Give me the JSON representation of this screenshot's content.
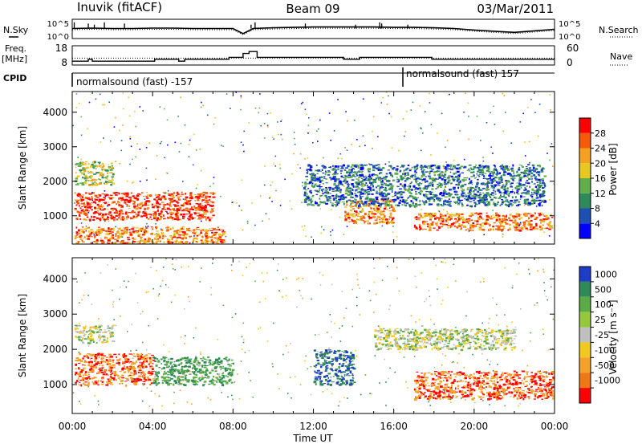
{
  "header": {
    "station": "Inuvik (fitACF)",
    "beam": "Beam 09",
    "date": "03/Mar/2011"
  },
  "noise_panel": {
    "left_label": "N.Sky",
    "right_label": "N.Search",
    "left_ticks": [
      "10^5",
      "10^0"
    ],
    "right_ticks": [
      "10^5",
      "10^0"
    ]
  },
  "freq_panel": {
    "left_label_1": "Freq.",
    "left_label_2": "[MHz]",
    "right_label": "Nave",
    "left_ticks": [
      "18",
      "8"
    ],
    "right_ticks": [
      "60",
      "0"
    ]
  },
  "cpid": {
    "label": "CPID",
    "segments": [
      {
        "text": "normalsound (fast) -157",
        "start_hour": 0
      },
      {
        "text": "normalsound (fast) 157",
        "start_hour": 16.6
      }
    ]
  },
  "x_axis": {
    "label": "Time UT",
    "ticks": [
      "00:00",
      "04:00",
      "08:00",
      "12:00",
      "16:00",
      "20:00",
      "00:00"
    ],
    "range_hours": [
      0,
      24
    ]
  },
  "y_axis": {
    "label": "Slant Range [km]",
    "ticks": [
      "1000",
      "2000",
      "3000",
      "4000"
    ],
    "range_km": [
      180,
      4600
    ]
  },
  "power_colorbar": {
    "label": "Power [dB]",
    "ticks": [
      "4",
      "8",
      "12",
      "16",
      "20",
      "24",
      "28"
    ],
    "colors": [
      "#0000ff",
      "#1e50b4",
      "#2f8a5a",
      "#5fae4a",
      "#e6c81e",
      "#f5a01e",
      "#f55a0a",
      "#ff0000"
    ]
  },
  "velocity_colorbar": {
    "label": "Velocity [m s⁻¹]",
    "ticks": [
      "1000",
      "500",
      "100",
      "25",
      "-25",
      "-100",
      "-500",
      "-1000"
    ],
    "colors": [
      "#1e3cc8",
      "#2e8b57",
      "#5aaa46",
      "#96c83c",
      "#c0c0c0",
      "#f0c81e",
      "#f5a028",
      "#f07814",
      "#ff0000"
    ]
  },
  "chart_data": [
    {
      "type": "line",
      "title": "Noise (N.Sky / N.Search)",
      "x_hours": [
        0,
        1,
        2,
        3,
        4,
        5,
        6,
        7,
        8,
        8.5,
        9,
        10,
        11,
        12,
        13,
        14,
        15,
        16,
        17,
        18,
        19,
        20,
        21,
        22,
        23,
        24
      ],
      "log10_sky": [
        2.6,
        2.7,
        2.6,
        2.6,
        2.7,
        2.7,
        2.6,
        2.6,
        2.6,
        1.3,
        2.6,
        2.8,
        2.9,
        3.0,
        3.0,
        3.0,
        3.0,
        2.9,
        2.9,
        2.8,
        2.6,
        2.2,
        1.9,
        1.6,
        2.0,
        2.4
      ]
    },
    {
      "type": "line",
      "title": "Frequency and Nave",
      "x_hours": [
        0,
        0.8,
        1.0,
        4.1,
        5.3,
        5.6,
        6.1,
        6.4,
        7.6,
        7.8,
        8.5,
        8.8,
        9.2,
        13.5,
        14.3,
        17.9,
        18.2,
        24
      ],
      "freq_mhz": [
        10,
        11,
        10,
        11,
        10,
        11,
        11,
        11,
        11,
        12,
        14,
        15,
        12,
        11,
        12,
        11,
        11,
        11
      ]
    },
    {
      "type": "heatmap",
      "title": "Power [dB]",
      "x_range_hours": [
        0,
        24
      ],
      "y_range_km": [
        180,
        4600
      ],
      "regions": [
        {
          "t0": 0.1,
          "t1": 7.0,
          "r0": 900,
          "r1": 1700,
          "value_db": 28
        },
        {
          "t0": 0.1,
          "t1": 7.5,
          "r0": 200,
          "r1": 700,
          "value_db": 24
        },
        {
          "t0": 0.1,
          "t1": 2.0,
          "r0": 1900,
          "r1": 2600,
          "value_db": 16
        },
        {
          "t0": 13.5,
          "t1": 16.0,
          "r0": 800,
          "r1": 1500,
          "value_db": 24
        },
        {
          "t0": 17.0,
          "t1": 24.0,
          "r0": 600,
          "r1": 1100,
          "value_db": 24
        },
        {
          "t0": 11.5,
          "t1": 23.5,
          "r0": 1300,
          "r1": 2500,
          "value_db": 8
        }
      ]
    },
    {
      "type": "heatmap",
      "title": "Velocity [m s-1]",
      "x_range_hours": [
        0,
        24
      ],
      "y_range_km": [
        180,
        4600
      ],
      "regions": [
        {
          "t0": 0.1,
          "t1": 4.0,
          "r0": 1000,
          "r1": 1900,
          "value_ms": -500
        },
        {
          "t0": 4.0,
          "t1": 8.0,
          "r0": 1000,
          "r1": 1800,
          "value_ms": 100
        },
        {
          "t0": 12.0,
          "t1": 14.0,
          "r0": 1000,
          "r1": 2000,
          "value_ms": 500
        },
        {
          "t0": 17.0,
          "t1": 24.0,
          "r0": 600,
          "r1": 1400,
          "value_ms": -500
        },
        {
          "t0": 0.1,
          "t1": 2.0,
          "r0": 2200,
          "r1": 2700,
          "value_ms": 0
        },
        {
          "t0": 15.0,
          "t1": 22.0,
          "r0": 2000,
          "r1": 2600,
          "value_ms": 0
        }
      ]
    }
  ]
}
